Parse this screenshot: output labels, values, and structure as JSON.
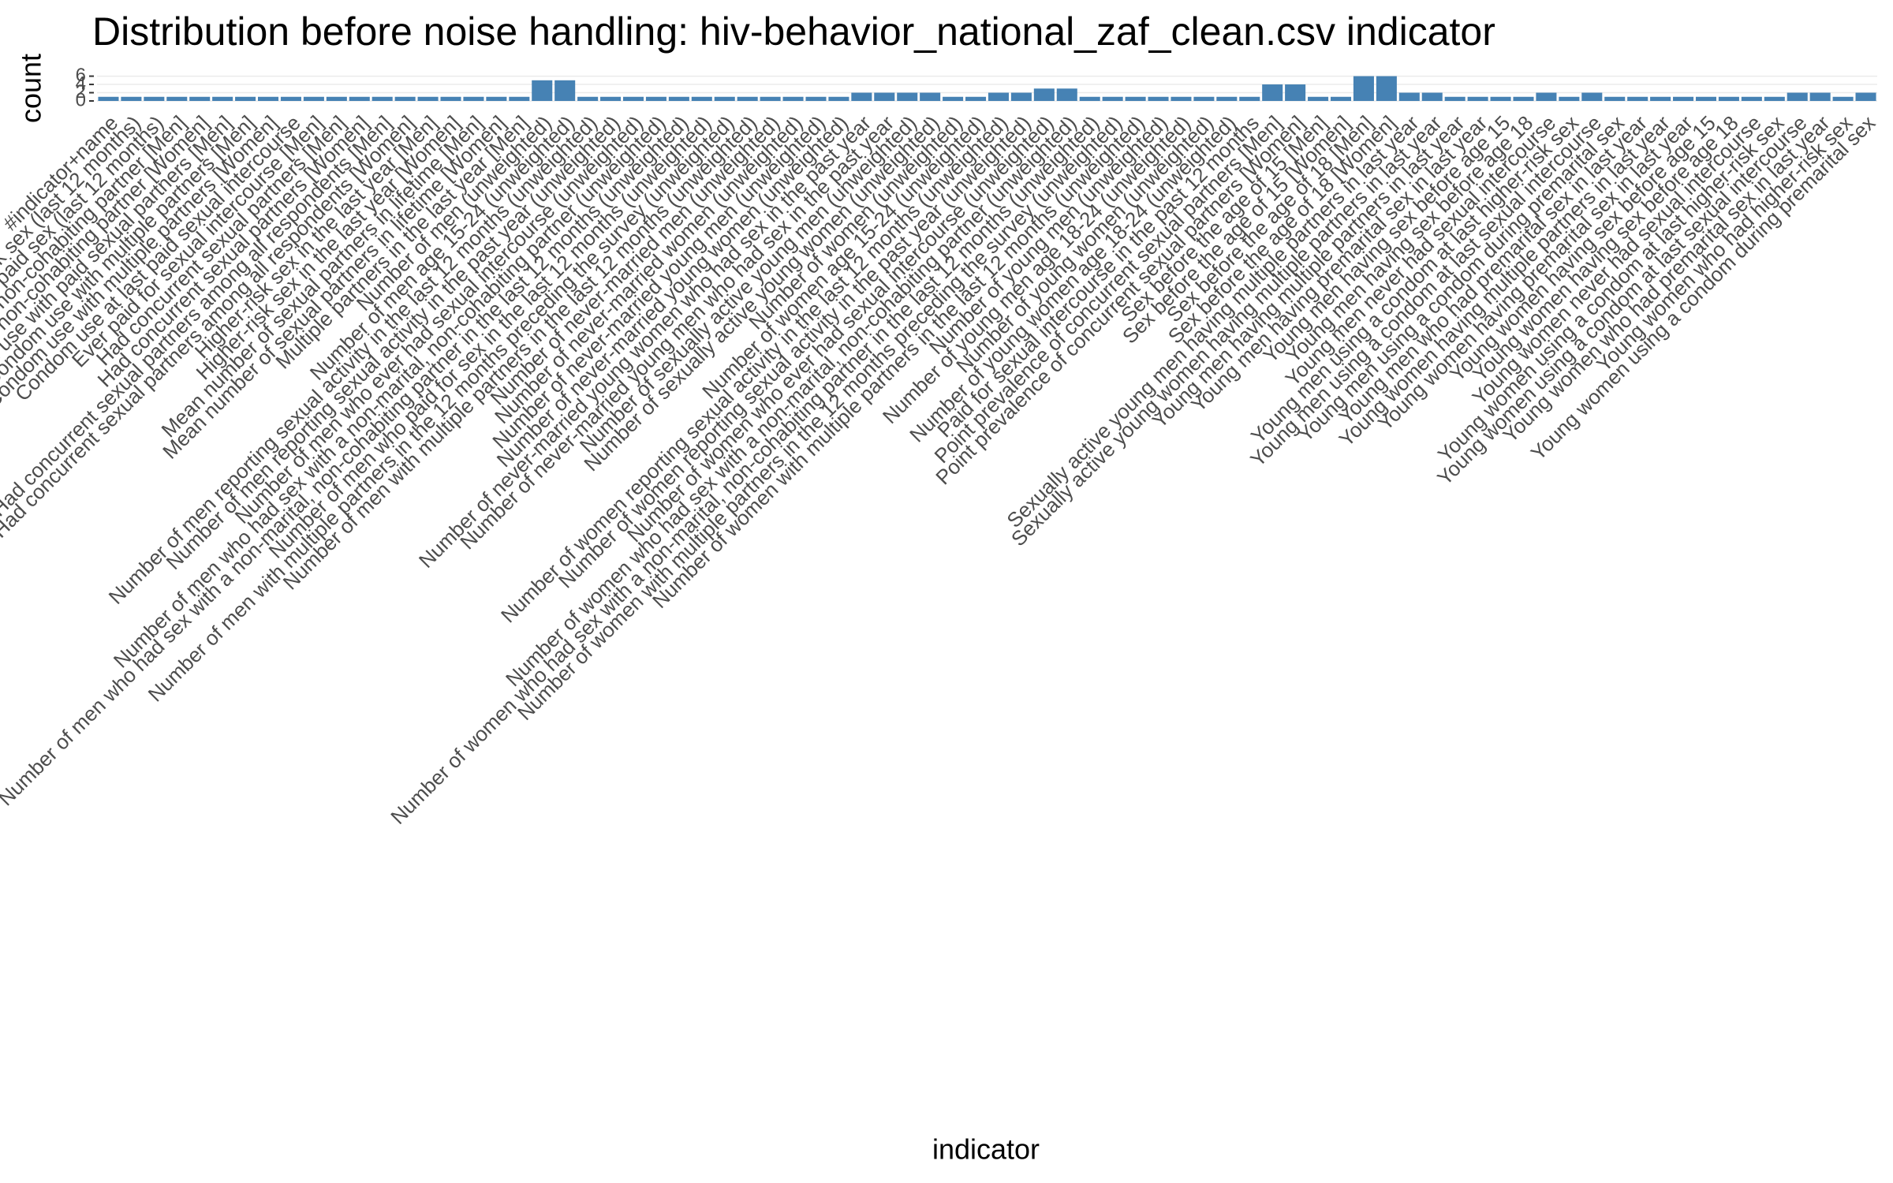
{
  "chart_data": {
    "type": "bar",
    "title": "Distribution before noise handling: hiv-behavior_national_zaf_clean.csv indicator",
    "x_label": "indicator",
    "y_label": "count",
    "color": "#4682b4",
    "grid": true,
    "ylim": [
      0,
      6.3
    ],
    "yticks": [
      0,
      2,
      4,
      6
    ],
    "categories": [
      "#indicator+name",
      "Condom use at last higher-risk sex (last 12 months)",
      "Condom use at last paid sex (last 12 months)",
      "Condom use with non-marital, non-cohabiting partner [Men]",
      "Condom use with non-marital, non-cohabiting partner [Women]",
      "Condom use with paid sexual partners [Men]",
      "Condom use with multiple partners [Men]",
      "Condom use with multiple partners [Women]",
      "Condom use at last paid sexual intercourse",
      "Ever paid for sexual intercourse [Men]",
      "Had concurrent sexual partners [Men]",
      "Had concurrent sexual partners [Women]",
      "Had concurrent sexual partners among all respondents [Men]",
      "Had concurrent sexual partners among all respondents [Women]",
      "Higher-risk sex in the last year [Men]",
      "Higher-risk sex in the last year [Women]",
      "Mean number of sexual partners in lifetime [Men]",
      "Mean number of sexual partners in lifetime [Women]",
      "Multiple partners in the last year [Men]",
      "Number of men (unweighted)",
      "Number of men age 15-24 (unweighted)",
      "Number of men reporting sexual activity in the last 12 months (unweighted)",
      "Number of men reporting sexual activity in the past year (unweighted)",
      "Number of men who ever had sexual intercourse (unweighted)",
      "Number of men who had sex with a non-marital, non-cohabiting partner (unweighted)",
      "Number of men who had sex with a non-marital, non-cohabiting partner in the last 12 months (unweighted)",
      "Number of men who paid for sex in the last 12 months (unweighted)",
      "Number of men with multiple partners in the 12 months preceding the survey (unweighted)",
      "Number of men with multiple partners in the last 12 months (unweighted)",
      "Number of never-married men (unweighted)",
      "Number of never-married women (unweighted)",
      "Number of never-married young men (unweighted)",
      "Number of never-married young women (unweighted)",
      "Number of never-married young women who had sex in the past year",
      "Number of never-married young men who had sex in the past year",
      "Number of sexually active young men (unweighted)",
      "Number of sexually active young women (unweighted)",
      "Number of women (unweighted)",
      "Number of women age 15-24 (unweighted)",
      "Number of women reporting sexual activity in the last 12 months (unweighted)",
      "Number of women reporting sexual activity in the past year (unweighted)",
      "Number of women who ever had sexual intercourse (unweighted)",
      "Number of women who had sex with a non-marital, non-cohabiting partner (unweighted)",
      "Number of women who had sex with a non-marital, non-cohabiting partner in the last 12 months (unweighted)",
      "Number of women with multiple partners in the 12 months preceding the survey (unweighted)",
      "Number of women with multiple partners in the last 12 months (unweighted)",
      "Number of young men (unweighted)",
      "Number of young men age 18-24 (unweighted)",
      "Number of young women (unweighted)",
      "Number of young women age 18-24 (unweighted)",
      "Paid for sexual intercourse in the past 12 months",
      "Point prevalence of concurrent sexual partners [Men]",
      "Point prevalence of concurrent sexual partners [Women]",
      "Sex before the age of 15 [Men]",
      "Sex before the age of 15 [Women]",
      "Sex before the age of 18 [Men]",
      "Sex before the age of 18 [Women]",
      "Sexually active young men having multiple partners in last year",
      "Sexually active young women having multiple partners in last year",
      "Young men having multiple partners in last year",
      "Young men having premarital sex in last year",
      "Young men having sex before age 15",
      "Young men having sex before age 18",
      "Young men never had sexual intercourse",
      "Young men using a condom at last higher-risk sex",
      "Young men using a condom at last sexual intercourse",
      "Young men using a condom during premarital sex",
      "Young men who had premarital sex in last year",
      "Young women having multiple partners in last year",
      "Young women having premarital sex in last year",
      "Young women having sex before age 15",
      "Young women having sex before age 18",
      "Young women never had sexual intercourse",
      "Young women using a condom at last higher-risk sex",
      "Young women using a condom at last sexual intercourse",
      "Young women who had premarital sex in last year",
      "Young women who had higher-risk sex",
      "Young women using a condom during premarital sex"
    ],
    "values": [
      1,
      1,
      1,
      1,
      1,
      1,
      1,
      1,
      1,
      1,
      1,
      1,
      1,
      1,
      1,
      1,
      1,
      1,
      1,
      5,
      5,
      1,
      1,
      1,
      1,
      1,
      1,
      1,
      1,
      1,
      1,
      1,
      1,
      2,
      2,
      2,
      2,
      1,
      1,
      2,
      2,
      3,
      3,
      1,
      1,
      1,
      1,
      1,
      1,
      1,
      1,
      4,
      4,
      1,
      1,
      6,
      6,
      2,
      2,
      1,
      1,
      1,
      1,
      2,
      1,
      2,
      1,
      1,
      1,
      1,
      1,
      1,
      1,
      1,
      2,
      2,
      1,
      2
    ]
  }
}
